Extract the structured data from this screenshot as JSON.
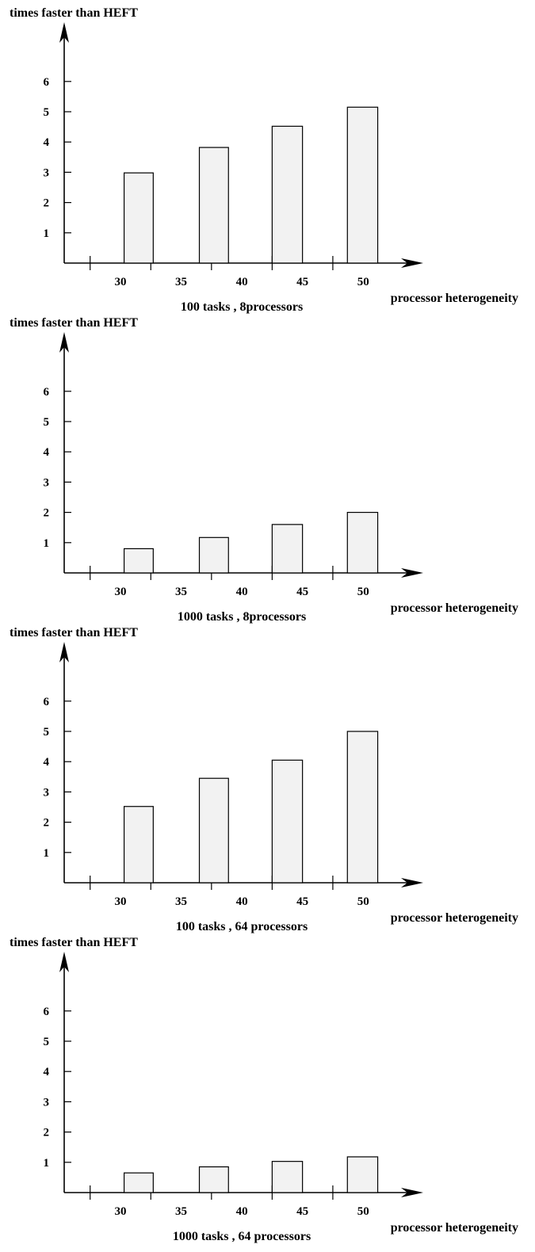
{
  "chart_data": [
    {
      "type": "bar",
      "ylabel": "times faster than HEFT",
      "xlabel": "processor  heterogeneity",
      "caption": "100 tasks , 8processors",
      "x_ticks": [
        "30",
        "35",
        "40",
        "45",
        "50"
      ],
      "y_ticks": [
        "1",
        "2",
        "3",
        "4",
        "5",
        "6"
      ],
      "ylim": [
        0,
        6
      ],
      "bars": [
        {
          "x_from": 30.3,
          "x_to": 32.7,
          "value": 2.98
        },
        {
          "x_from": 36.5,
          "x_to": 38.9,
          "value": 3.82
        },
        {
          "x_from": 42.5,
          "x_to": 45.0,
          "value": 4.52
        },
        {
          "x_from": 48.7,
          "x_to": 51.2,
          "value": 5.15
        }
      ]
    },
    {
      "type": "bar",
      "ylabel": "times faster than HEFT",
      "xlabel": "processor  heterogeneity",
      "caption": "1000 tasks , 8processors",
      "x_ticks": [
        "30",
        "35",
        "40",
        "45",
        "50"
      ],
      "y_ticks": [
        "1",
        "2",
        "3",
        "4",
        "5",
        "6"
      ],
      "ylim": [
        0,
        6
      ],
      "bars": [
        {
          "x_from": 30.3,
          "x_to": 32.7,
          "value": 0.8
        },
        {
          "x_from": 36.5,
          "x_to": 38.9,
          "value": 1.17
        },
        {
          "x_from": 42.5,
          "x_to": 45.0,
          "value": 1.6
        },
        {
          "x_from": 48.7,
          "x_to": 51.2,
          "value": 2.0
        }
      ]
    },
    {
      "type": "bar",
      "ylabel": "times faster than HEFT",
      "xlabel": "processor  heterogeneity",
      "caption": "100 tasks , 64  processors",
      "x_ticks": [
        "30",
        "35",
        "40",
        "45",
        "50"
      ],
      "y_ticks": [
        "1",
        "2",
        "3",
        "4",
        "5",
        "6"
      ],
      "ylim": [
        0,
        6
      ],
      "bars": [
        {
          "x_from": 30.3,
          "x_to": 32.7,
          "value": 2.52
        },
        {
          "x_from": 36.5,
          "x_to": 38.9,
          "value": 3.45
        },
        {
          "x_from": 42.5,
          "x_to": 45.0,
          "value": 4.05
        },
        {
          "x_from": 48.7,
          "x_to": 51.2,
          "value": 5.0
        }
      ]
    },
    {
      "type": "bar",
      "ylabel": "times faster than HEFT",
      "xlabel": "processor  heterogeneity",
      "caption": "1000 tasks , 64  processors",
      "x_ticks": [
        "30",
        "35",
        "40",
        "45",
        "50"
      ],
      "y_ticks": [
        "1",
        "2",
        "3",
        "4",
        "5",
        "6"
      ],
      "ylim": [
        0,
        6
      ],
      "bars": [
        {
          "x_from": 30.3,
          "x_to": 32.7,
          "value": 0.65
        },
        {
          "x_from": 36.5,
          "x_to": 38.9,
          "value": 0.85
        },
        {
          "x_from": 42.5,
          "x_to": 45.0,
          "value": 1.03
        },
        {
          "x_from": 48.7,
          "x_to": 51.2,
          "value": 1.18
        }
      ]
    }
  ],
  "colors": {
    "bar_fill": "#f2f2f2",
    "stroke": "#000000",
    "background": "#ffffff"
  }
}
